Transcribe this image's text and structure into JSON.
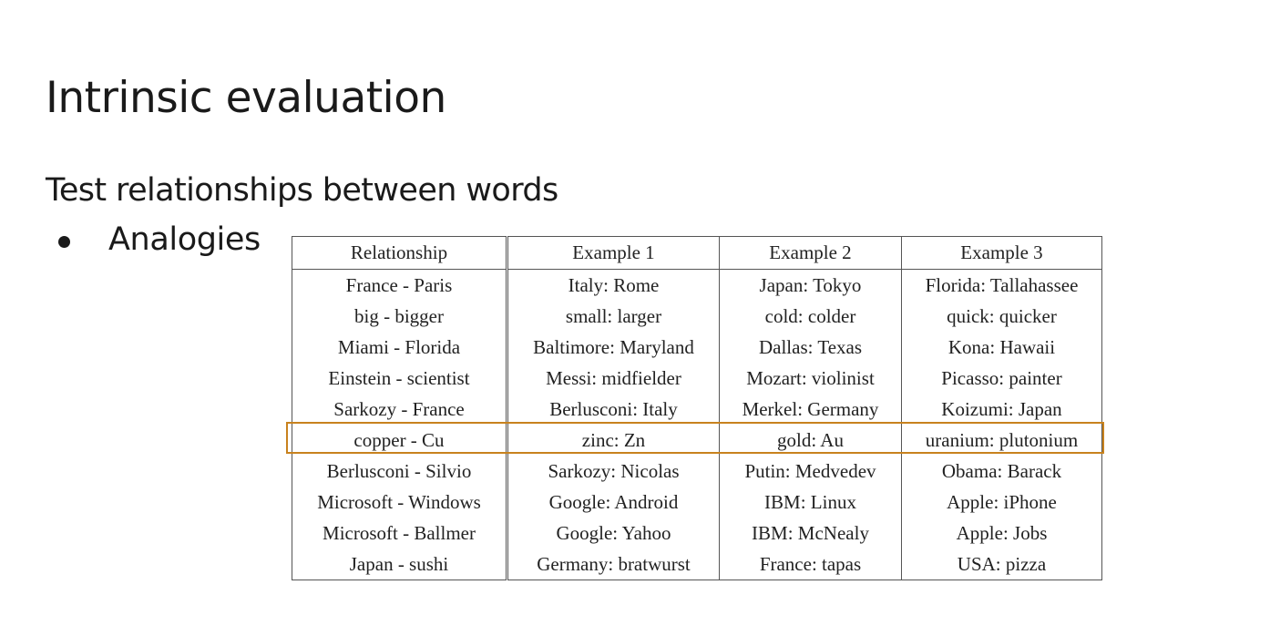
{
  "slide": {
    "title": "Intrinsic evaluation",
    "subtitle": "Test relationships between words",
    "bullets": [
      "Analogies"
    ]
  },
  "table": {
    "headers": [
      "Relationship",
      "Example 1",
      "Example 2",
      "Example 3"
    ],
    "rows": [
      [
        "France - Paris",
        "Italy: Rome",
        "Japan: Tokyo",
        "Florida: Tallahassee"
      ],
      [
        "big - bigger",
        "small: larger",
        "cold: colder",
        "quick: quicker"
      ],
      [
        "Miami - Florida",
        "Baltimore: Maryland",
        "Dallas: Texas",
        "Kona: Hawaii"
      ],
      [
        "Einstein - scientist",
        "Messi: midfielder",
        "Mozart: violinist",
        "Picasso: painter"
      ],
      [
        "Sarkozy - France",
        "Berlusconi: Italy",
        "Merkel: Germany",
        "Koizumi: Japan"
      ],
      [
        "copper - Cu",
        "zinc: Zn",
        "gold: Au",
        "uranium: plutonium"
      ],
      [
        "Berlusconi - Silvio",
        "Sarkozy: Nicolas",
        "Putin: Medvedev",
        "Obama: Barack"
      ],
      [
        "Microsoft - Windows",
        "Google: Android",
        "IBM: Linux",
        "Apple: iPhone"
      ],
      [
        "Microsoft - Ballmer",
        "Google: Yahoo",
        "IBM: McNealy",
        "Apple: Jobs"
      ],
      [
        "Japan - sushi",
        "Germany: bratwurst",
        "France: tapas",
        "USA: pizza"
      ]
    ],
    "highlighted_row_index": 5,
    "highlight_color": "#c8821e"
  }
}
